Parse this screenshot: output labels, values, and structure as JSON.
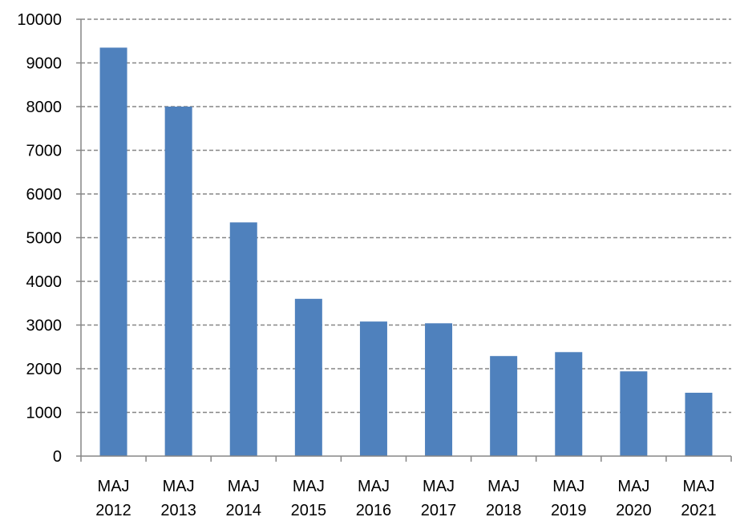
{
  "chart_data": {
    "type": "bar",
    "categories": [
      [
        "MAJ",
        "2012"
      ],
      [
        "MAJ",
        "2013"
      ],
      [
        "MAJ",
        "2014"
      ],
      [
        "MAJ",
        "2015"
      ],
      [
        "MAJ",
        "2016"
      ],
      [
        "MAJ",
        "2017"
      ],
      [
        "MAJ",
        "2018"
      ],
      [
        "MAJ",
        "2019"
      ],
      [
        "MAJ",
        "2020"
      ],
      [
        "MAJ",
        "2021"
      ]
    ],
    "values": [
      9350,
      8000,
      5350,
      3600,
      3080,
      3040,
      2290,
      2380,
      1940,
      1450
    ],
    "ylim": [
      0,
      10000
    ],
    "yticks": [
      "0",
      "1000",
      "2000",
      "3000",
      "4000",
      "5000",
      "6000",
      "7000",
      "8000",
      "9000",
      "10000"
    ],
    "grid": true,
    "legend": "none",
    "bar_color": "#4F81BD",
    "grid_color": "#868686"
  }
}
